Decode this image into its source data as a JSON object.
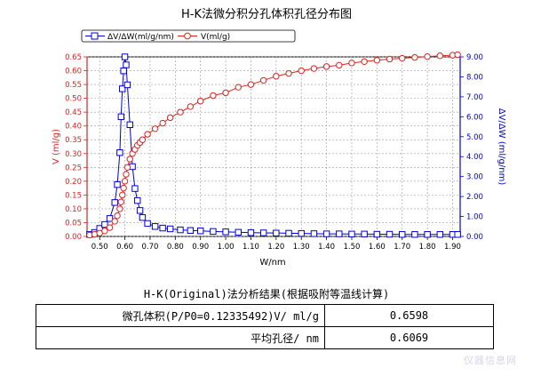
{
  "chart_data": {
    "type": "line",
    "title": "H-K法微分积分孔体积孔径分布图",
    "xlabel": "W/nm",
    "ylabel_left": "V (ml/g)",
    "ylabel_right": "ΔV/ΔW (ml/g/nm)",
    "xlim": [
      0.45,
      1.93
    ],
    "ylim_left": [
      0,
      0.65
    ],
    "ylim_right": [
      0,
      9
    ],
    "x_ticks": [
      "0.50",
      "0.60",
      "0.70",
      "0.80",
      "0.90",
      "1.00",
      "1.10",
      "1.20",
      "1.30",
      "1.40",
      "1.50",
      "1.60",
      "1.70",
      "1.80",
      "1.90"
    ],
    "y_left_ticks": [
      "0.00",
      "0.05",
      "0.10",
      "0.15",
      "0.20",
      "0.25",
      "0.30",
      "0.35",
      "0.40",
      "0.45",
      "0.50",
      "0.55",
      "0.60",
      "0.65"
    ],
    "y_right_ticks": [
      "0.00",
      "1.00",
      "2.00",
      "3.00",
      "4.00",
      "5.00",
      "6.00",
      "7.00",
      "8.00",
      "9.00"
    ],
    "grid": true,
    "legend_position": "top-left",
    "series": [
      {
        "name": "ΔV/ΔW(ml/g/nm)",
        "axis": "right",
        "color": "#0000dd",
        "marker": "square",
        "x": [
          0.46,
          0.48,
          0.5,
          0.52,
          0.54,
          0.56,
          0.57,
          0.58,
          0.585,
          0.59,
          0.595,
          0.6,
          0.605,
          0.61,
          0.62,
          0.63,
          0.64,
          0.65,
          0.66,
          0.67,
          0.69,
          0.72,
          0.75,
          0.78,
          0.82,
          0.86,
          0.9,
          0.95,
          1.0,
          1.05,
          1.1,
          1.15,
          1.2,
          1.25,
          1.3,
          1.35,
          1.4,
          1.45,
          1.5,
          1.55,
          1.6,
          1.65,
          1.7,
          1.75,
          1.8,
          1.85,
          1.9,
          1.92
        ],
        "values": [
          0.1,
          0.2,
          0.4,
          0.6,
          0.9,
          1.7,
          2.6,
          4.2,
          6.0,
          7.4,
          8.3,
          9.0,
          8.6,
          7.6,
          5.6,
          3.5,
          2.4,
          1.8,
          1.3,
          0.95,
          0.65,
          0.5,
          0.42,
          0.38,
          0.33,
          0.3,
          0.28,
          0.25,
          0.23,
          0.21,
          0.19,
          0.18,
          0.17,
          0.16,
          0.15,
          0.14,
          0.13,
          0.13,
          0.12,
          0.12,
          0.11,
          0.11,
          0.1,
          0.1,
          0.1,
          0.1,
          0.1,
          0.1
        ]
      },
      {
        "name": "V(ml/g)",
        "axis": "left",
        "color": "#dd2222",
        "marker": "circle",
        "x": [
          0.46,
          0.48,
          0.5,
          0.52,
          0.54,
          0.56,
          0.57,
          0.58,
          0.585,
          0.59,
          0.595,
          0.6,
          0.605,
          0.61,
          0.62,
          0.63,
          0.64,
          0.65,
          0.66,
          0.67,
          0.69,
          0.72,
          0.75,
          0.78,
          0.82,
          0.86,
          0.9,
          0.95,
          1.0,
          1.05,
          1.1,
          1.15,
          1.2,
          1.25,
          1.3,
          1.35,
          1.4,
          1.45,
          1.5,
          1.55,
          1.6,
          1.65,
          1.7,
          1.75,
          1.8,
          1.85,
          1.9,
          1.92
        ],
        "values": [
          0.005,
          0.008,
          0.012,
          0.02,
          0.032,
          0.055,
          0.075,
          0.1,
          0.125,
          0.15,
          0.175,
          0.2,
          0.225,
          0.25,
          0.28,
          0.3,
          0.315,
          0.33,
          0.34,
          0.35,
          0.37,
          0.39,
          0.41,
          0.43,
          0.45,
          0.47,
          0.49,
          0.51,
          0.52,
          0.54,
          0.55,
          0.565,
          0.58,
          0.59,
          0.6,
          0.608,
          0.615,
          0.62,
          0.628,
          0.633,
          0.638,
          0.642,
          0.645,
          0.648,
          0.651,
          0.654,
          0.656,
          0.658
        ]
      }
    ]
  },
  "results": {
    "title": "H-K(Original)法分析结果(根据吸附等温线计算)",
    "rows": [
      {
        "label": "微孔体积(P/P0=0.12335492)V/ ml/g",
        "value": "0.6598"
      },
      {
        "label": "平均孔径/ nm",
        "value": "0.6069"
      }
    ]
  },
  "watermark": "仪器信息网"
}
